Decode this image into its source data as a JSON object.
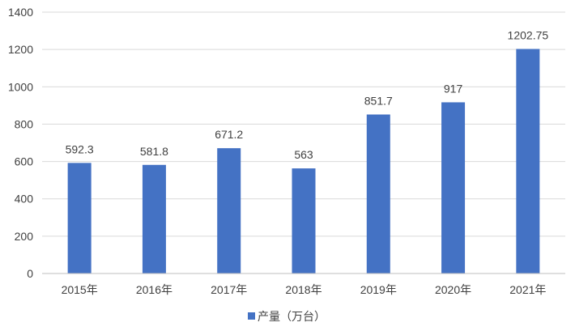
{
  "chart_data": {
    "type": "bar",
    "title": "",
    "xlabel": "",
    "ylabel": "",
    "categories": [
      "2015年",
      "2016年",
      "2017年",
      "2018年",
      "2019年",
      "2020年",
      "2021年"
    ],
    "series": [
      {
        "name": "产量（万台）",
        "values": [
          592.3,
          581.8,
          671.2,
          563,
          851.7,
          917,
          1202.75
        ],
        "labels": [
          "592.3",
          "581.8",
          "671.2",
          "563",
          "851.7",
          "917",
          "1202.75"
        ]
      }
    ],
    "ylim": [
      0,
      1400
    ],
    "yticks": [
      0,
      200,
      400,
      600,
      800,
      1000,
      1200,
      1400
    ],
    "grid": true,
    "legend_position": "bottom",
    "colors": {
      "bar": "#4472C4",
      "grid": "#D9D9D9",
      "axis": "#BFBFBF",
      "text": "#404040"
    }
  }
}
